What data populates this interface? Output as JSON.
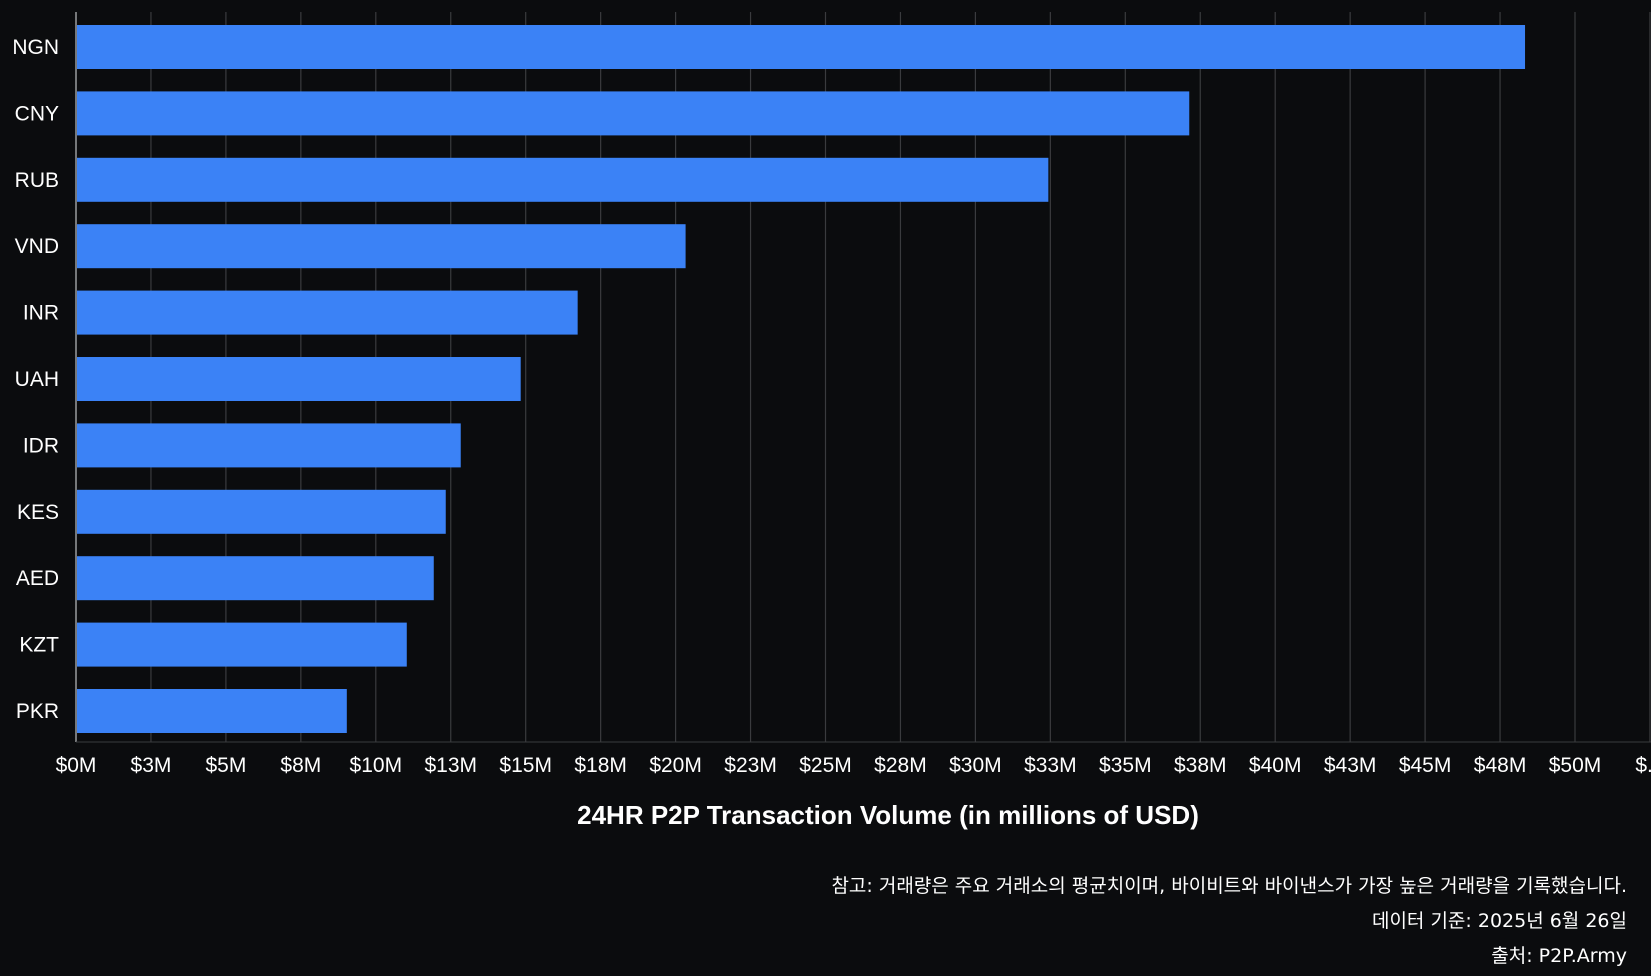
{
  "chart_data": {
    "type": "bar",
    "orientation": "horizontal",
    "categories": [
      "NGN",
      "CNY",
      "RUB",
      "VND",
      "INR",
      "UAH",
      "IDR",
      "KES",
      "AED",
      "KZT",
      "PKR"
    ],
    "values": [
      48.3,
      37.1,
      32.4,
      20.3,
      16.7,
      14.8,
      12.8,
      12.3,
      11.9,
      11.0,
      9.0
    ],
    "xlabel": "24HR P2P Transaction Volume (in millions of USD)",
    "ylabel": "",
    "xlim": [
      0,
      52.5
    ],
    "x_ticks": [
      "$0M",
      "$3M",
      "$5M",
      "$8M",
      "$10M",
      "$13M",
      "$15M",
      "$18M",
      "$20M",
      "$23M",
      "$25M",
      "$28M",
      "$30M",
      "$33M",
      "$35M",
      "$38M",
      "$40M",
      "$43M",
      "$45M",
      "$48M",
      "$50M",
      "$..."
    ],
    "grid": true,
    "bar_color": "#3b82f6",
    "background_color": "#0b0c0e",
    "grid_color": "#3a3b3e"
  },
  "notes": {
    "note": "참고: 거래량은 주요 거래소의 평균치이며, 바이비트와 바이낸스가 가장 높은 거래량을 기록했습니다.",
    "date": "데이터 기준: 2025년 6월 26일",
    "source": "출처: P2P.Army"
  }
}
